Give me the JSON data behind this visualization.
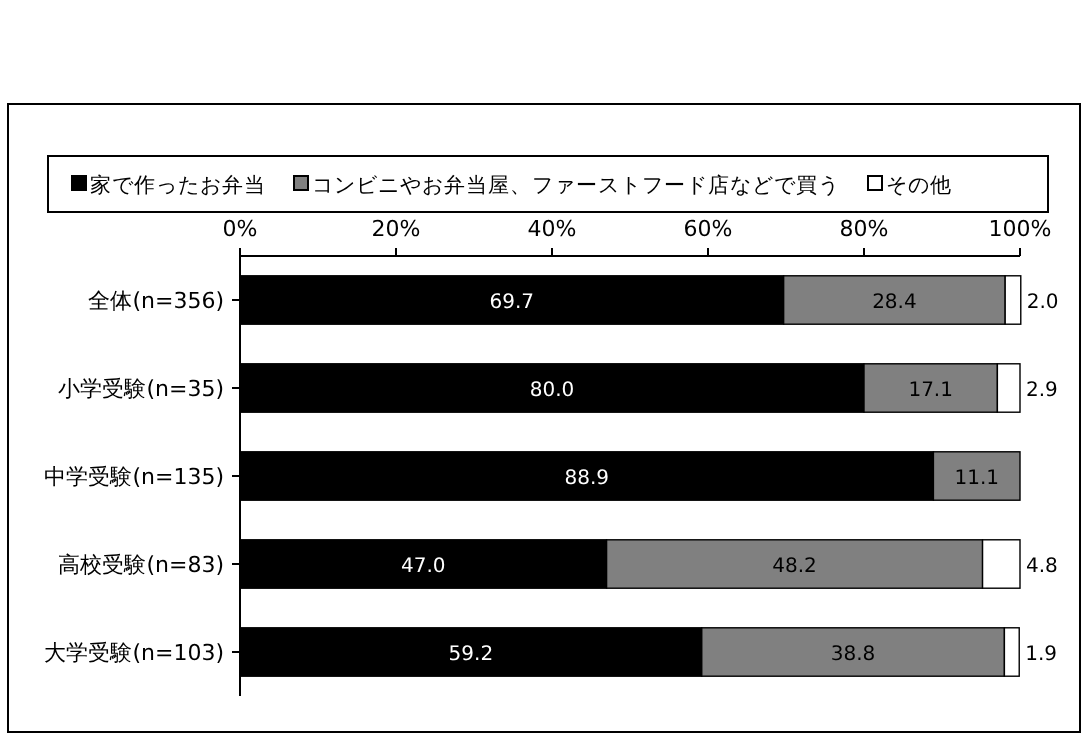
{
  "chart_data": {
    "type": "bar",
    "orientation": "horizontal",
    "stacked": true,
    "categories": [
      "全体(n=356)",
      "小学受験(n=35)",
      "中学受験(n=135)",
      "高校受験(n=83)",
      "大学受験(n=103)"
    ],
    "series": [
      {
        "name": "家で作ったお弁当",
        "color": "#000000",
        "values": [
          69.7,
          80.0,
          88.9,
          47.0,
          59.2
        ],
        "value_labels": [
          "69.7",
          "80.0",
          "88.9",
          "47.0",
          "59.2"
        ]
      },
      {
        "name": "コンビニやお弁当屋、ファーストフード店などで買う",
        "color": "#808080",
        "values": [
          28.4,
          17.1,
          11.1,
          48.2,
          38.8
        ],
        "value_labels": [
          "28.4",
          "17.1",
          "11.1",
          "48.2",
          "38.8"
        ]
      },
      {
        "name": "その他",
        "color": "#ffffff",
        "values": [
          2.0,
          2.9,
          0,
          4.8,
          1.9
        ],
        "value_labels": [
          "2.0",
          "2.9",
          null,
          "4.8",
          "1.9"
        ]
      }
    ],
    "xlim": [
      0,
      100
    ],
    "xticks": [
      {
        "value": 0,
        "label": "0%"
      },
      {
        "value": 20,
        "label": "20%"
      },
      {
        "value": 40,
        "label": "40%"
      },
      {
        "value": 60,
        "label": "60%"
      },
      {
        "value": 80,
        "label": "80%"
      },
      {
        "value": 100,
        "label": "100%"
      }
    ],
    "legend": "top",
    "grid": false
  }
}
